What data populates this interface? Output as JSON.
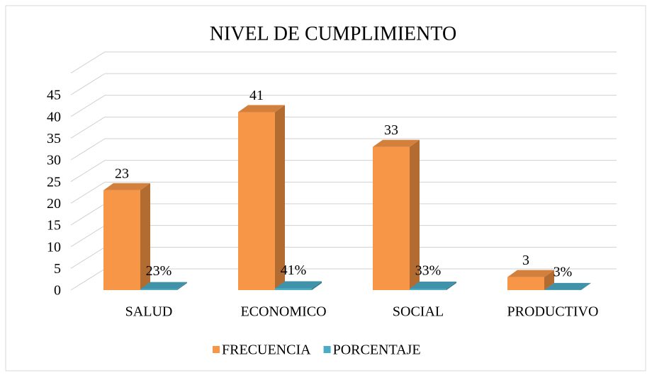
{
  "chart_data": {
    "type": "bar3d",
    "title": "NIVEL DE CUMPLIMIENTO",
    "categories": [
      "SALUD",
      "ECONOMICO",
      "SOCIAL",
      "PRODUCTIVO"
    ],
    "series": [
      {
        "name": "FRECUENCIA",
        "color": "#f79646",
        "values": [
          23,
          41,
          33,
          3
        ]
      },
      {
        "name": "PORCENTAJE",
        "color": "#4bacc6",
        "values": [
          0.23,
          0.41,
          0.33,
          0.03
        ],
        "value_labels": [
          "23%",
          "41%",
          "33%",
          "3%"
        ]
      }
    ],
    "ylim": [
      0,
      45
    ],
    "yticks": [
      0,
      5,
      10,
      15,
      20,
      25,
      30,
      35,
      40,
      45
    ],
    "grid": true,
    "legend": "bottom"
  }
}
